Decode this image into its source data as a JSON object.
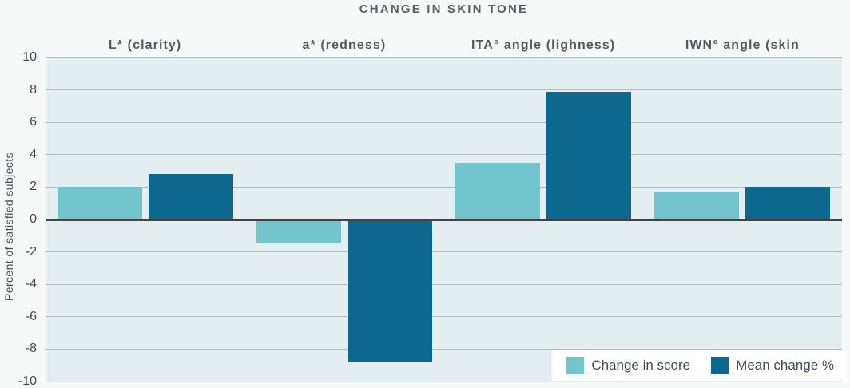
{
  "chart_data": {
    "type": "bar",
    "title": "CHANGE IN SKIN TONE",
    "ylabel": "Percent of satisfied subjects",
    "ylim": [
      -10,
      10
    ],
    "yticks": [
      10,
      8,
      6,
      4,
      2,
      0,
      -2,
      -4,
      -6,
      -8,
      -10
    ],
    "grid": true,
    "legend_position": "bottom-right",
    "categories": [
      "L* (clarity)",
      "a* (redness)",
      "ITA° angle (lighness)",
      "IWN° angle (skin"
    ],
    "series": [
      {
        "name": "Change in score",
        "color": "#72c5cc",
        "values": [
          2.0,
          -1.5,
          3.5,
          1.7
        ]
      },
      {
        "name": "Mean change %",
        "color": "#0d688f",
        "values": [
          2.8,
          -8.8,
          7.9,
          2.0
        ]
      }
    ]
  },
  "colors": {
    "page_bg": "#f7f8f8",
    "plot_bg": "#e4eef1",
    "gridline": "#aebcc1",
    "zero_line": "#3f4447",
    "legend_bg": "#ffffff",
    "title_text": "#5b5f62",
    "header_text": "#55595c",
    "tick_text": "#43484a"
  }
}
